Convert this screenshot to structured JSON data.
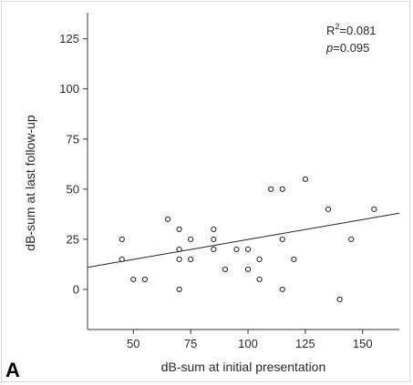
{
  "chart_data": {
    "type": "scatter",
    "xlabel": "dB-sum at initial presentation",
    "ylabel": "dB-sum at last follow-up",
    "panel_label": "A",
    "xlim": [
      30,
      166
    ],
    "ylim": [
      -20,
      138
    ],
    "xticks": [
      50,
      75,
      100,
      125,
      150
    ],
    "yticks": [
      0,
      25,
      50,
      75,
      100,
      125
    ],
    "grid": false,
    "annotation": {
      "r2_prefix": "R",
      "r2_exp": "2",
      "r2_value": "=0.081",
      "p_symbol": "p",
      "p_value": "=0.095"
    },
    "fit_line": {
      "x": [
        30,
        166
      ],
      "y": [
        11,
        38
      ]
    },
    "points": [
      {
        "x": 45,
        "y": 25
      },
      {
        "x": 45,
        "y": 15
      },
      {
        "x": 50,
        "y": 5
      },
      {
        "x": 55,
        "y": 5
      },
      {
        "x": 65,
        "y": 35
      },
      {
        "x": 70,
        "y": 30
      },
      {
        "x": 70,
        "y": 20
      },
      {
        "x": 70,
        "y": 15
      },
      {
        "x": 70,
        "y": 0
      },
      {
        "x": 75,
        "y": 25
      },
      {
        "x": 75,
        "y": 15
      },
      {
        "x": 85,
        "y": 30
      },
      {
        "x": 85,
        "y": 25
      },
      {
        "x": 85,
        "y": 20
      },
      {
        "x": 90,
        "y": 10
      },
      {
        "x": 95,
        "y": 20
      },
      {
        "x": 100,
        "y": 20
      },
      {
        "x": 100,
        "y": 10
      },
      {
        "x": 105,
        "y": 15
      },
      {
        "x": 105,
        "y": 5
      },
      {
        "x": 110,
        "y": 50
      },
      {
        "x": 115,
        "y": 50
      },
      {
        "x": 115,
        "y": 25
      },
      {
        "x": 115,
        "y": 0
      },
      {
        "x": 120,
        "y": 15
      },
      {
        "x": 125,
        "y": 55
      },
      {
        "x": 135,
        "y": 40
      },
      {
        "x": 140,
        "y": -5
      },
      {
        "x": 145,
        "y": 25
      },
      {
        "x": 155,
        "y": 40
      }
    ]
  }
}
